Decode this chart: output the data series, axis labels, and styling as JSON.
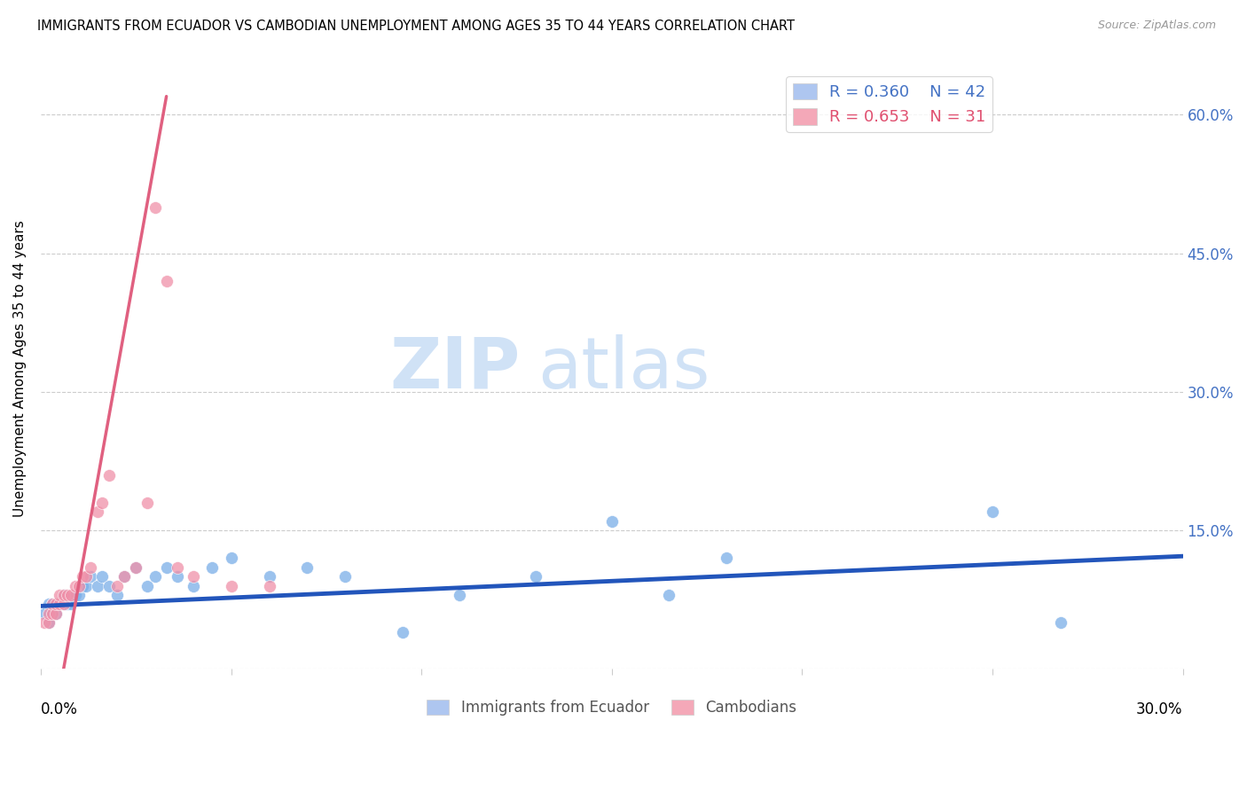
{
  "title": "IMMIGRANTS FROM ECUADOR VS CAMBODIAN UNEMPLOYMENT AMONG AGES 35 TO 44 YEARS CORRELATION CHART",
  "source": "Source: ZipAtlas.com",
  "ylabel": "Unemployment Among Ages 35 to 44 years",
  "yaxis_ticks": [
    0.0,
    0.15,
    0.3,
    0.45,
    0.6
  ],
  "yaxis_labels": [
    "",
    "15.0%",
    "30.0%",
    "45.0%",
    "60.0%"
  ],
  "xlim": [
    0.0,
    0.3
  ],
  "ylim": [
    0.0,
    0.65
  ],
  "legend_entry1_R": "0.360",
  "legend_entry1_N": "42",
  "legend_entry1_color": "#aec6f0",
  "legend_entry2_R": "0.653",
  "legend_entry2_N": "31",
  "legend_entry2_color": "#f4a8b8",
  "watermark_zip": "ZIP",
  "watermark_atlas": "atlas",
  "ecuador_color": "#7aaee8",
  "cambodian_color": "#f090a8",
  "ecuador_line_color": "#2255bb",
  "cambodian_line_color": "#e06080",
  "ecuador_legend_color": "#4472c4",
  "cambodian_legend_color": "#e05070",
  "ecuador_points_x": [
    0.001,
    0.002,
    0.002,
    0.003,
    0.003,
    0.004,
    0.004,
    0.005,
    0.005,
    0.006,
    0.006,
    0.007,
    0.008,
    0.009,
    0.01,
    0.011,
    0.012,
    0.013,
    0.015,
    0.016,
    0.018,
    0.02,
    0.022,
    0.025,
    0.028,
    0.03,
    0.033,
    0.036,
    0.04,
    0.045,
    0.05,
    0.06,
    0.07,
    0.08,
    0.095,
    0.11,
    0.13,
    0.15,
    0.165,
    0.18,
    0.25,
    0.268
  ],
  "ecuador_points_y": [
    0.06,
    0.05,
    0.07,
    0.06,
    0.07,
    0.06,
    0.07,
    0.07,
    0.07,
    0.07,
    0.08,
    0.07,
    0.07,
    0.08,
    0.08,
    0.09,
    0.09,
    0.1,
    0.09,
    0.1,
    0.09,
    0.08,
    0.1,
    0.11,
    0.09,
    0.1,
    0.11,
    0.1,
    0.09,
    0.11,
    0.12,
    0.1,
    0.11,
    0.1,
    0.04,
    0.08,
    0.1,
    0.16,
    0.08,
    0.12,
    0.17,
    0.05
  ],
  "cambodian_points_x": [
    0.001,
    0.002,
    0.002,
    0.003,
    0.003,
    0.004,
    0.004,
    0.005,
    0.005,
    0.006,
    0.006,
    0.007,
    0.008,
    0.009,
    0.01,
    0.011,
    0.012,
    0.013,
    0.015,
    0.016,
    0.018,
    0.02,
    0.022,
    0.025,
    0.028,
    0.03,
    0.033,
    0.036,
    0.04,
    0.05,
    0.06
  ],
  "cambodian_points_y": [
    0.05,
    0.05,
    0.06,
    0.06,
    0.07,
    0.06,
    0.07,
    0.07,
    0.08,
    0.07,
    0.08,
    0.08,
    0.08,
    0.09,
    0.09,
    0.1,
    0.1,
    0.11,
    0.17,
    0.18,
    0.21,
    0.09,
    0.1,
    0.11,
    0.18,
    0.5,
    0.42,
    0.11,
    0.1,
    0.09,
    0.09
  ],
  "ecuador_trend_x": [
    0.0,
    0.3
  ],
  "ecuador_trend_y": [
    0.068,
    0.122
  ],
  "cambodian_trend_x": [
    0.006,
    0.033
  ],
  "cambodian_trend_y": [
    0.0,
    0.62
  ],
  "xtick_positions": [
    0.0,
    0.05,
    0.1,
    0.15,
    0.2,
    0.25,
    0.3
  ],
  "bottom_legend_labels": [
    "Immigrants from Ecuador",
    "Cambodians"
  ],
  "bottom_legend_colors": [
    "#aec6f0",
    "#f4a8b8"
  ]
}
